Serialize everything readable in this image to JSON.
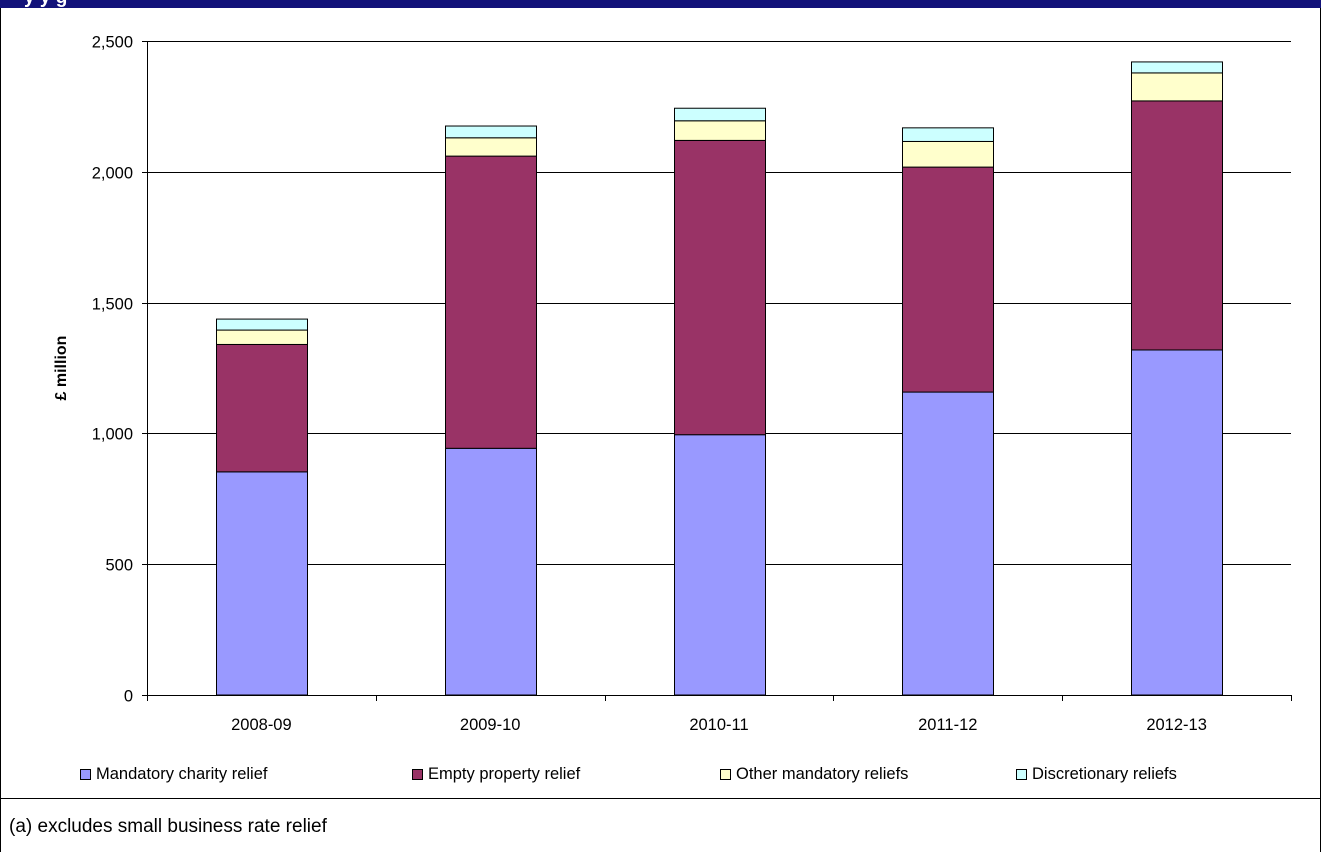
{
  "header": {
    "title_fragment": "y                y    g"
  },
  "chart_data": {
    "type": "bar",
    "stacked": true,
    "categories": [
      "2008-09",
      "2009-10",
      "2010-11",
      "2011-12",
      "2012-13"
    ],
    "series": [
      {
        "name": "Mandatory charity relief",
        "color": "#9999ff",
        "values": [
          853,
          943,
          995,
          1158,
          1319
        ]
      },
      {
        "name": "Empty property relief",
        "color": "#993366",
        "values": [
          487,
          1117,
          1125,
          860,
          952
        ]
      },
      {
        "name": "Other mandatory reliefs",
        "color": "#ffffcc",
        "values": [
          55,
          70,
          75,
          98,
          107
        ]
      },
      {
        "name": "Discretionary reliefs",
        "color": "#ccffff",
        "values": [
          42,
          45,
          48,
          52,
          42
        ]
      }
    ],
    "ylabel": "£ million",
    "xlabel": "",
    "ylim": [
      0,
      2500
    ],
    "yticks": [
      0,
      500,
      1000,
      1500,
      2000,
      2500
    ],
    "ytick_labels": [
      "0",
      "500",
      "1,000",
      "1,500",
      "2,000",
      "2,500"
    ],
    "grid": true,
    "legend_position": "bottom"
  },
  "footnote": "(a) excludes small business rate relief"
}
